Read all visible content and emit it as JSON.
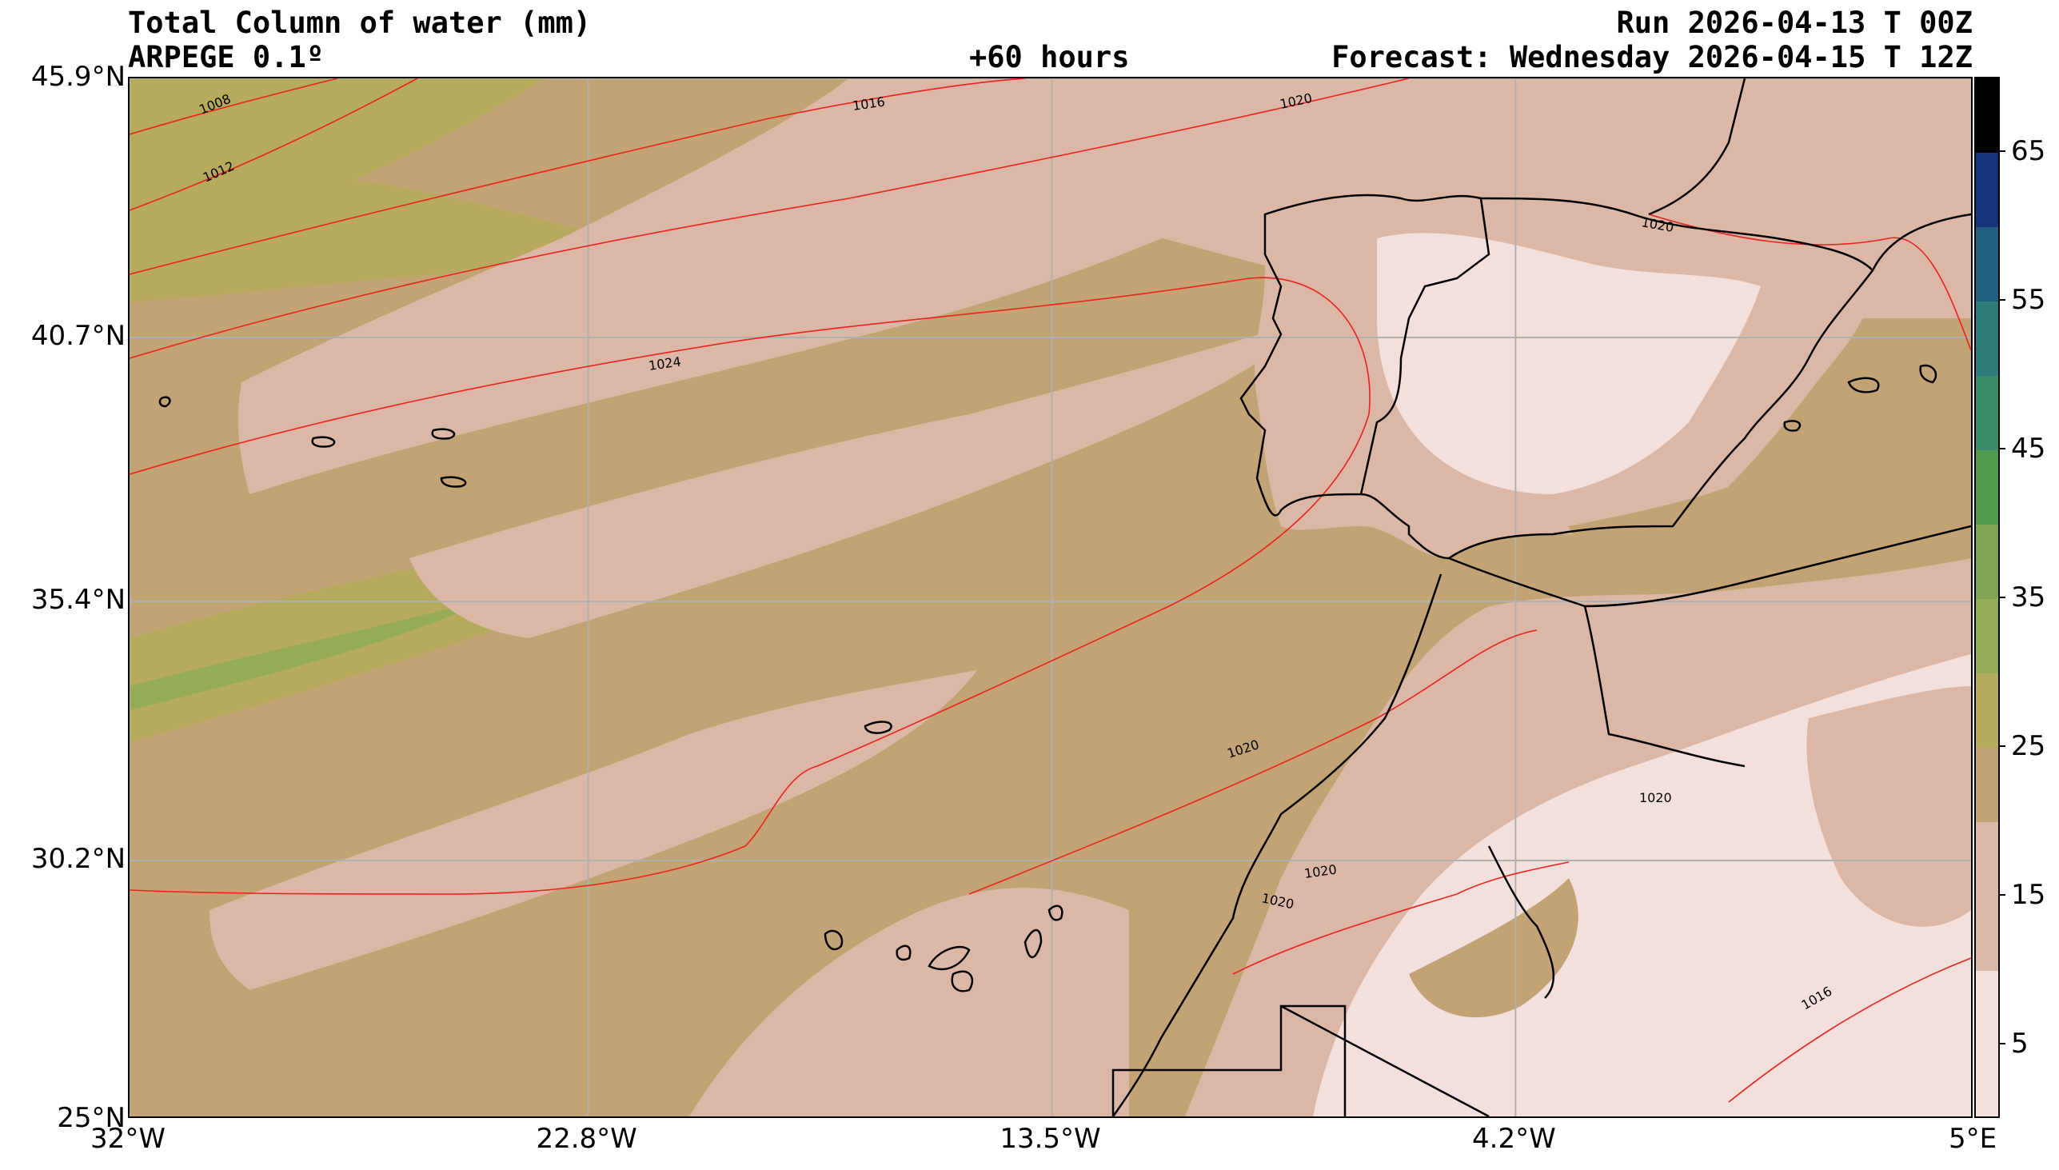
{
  "header": {
    "title": "Total Column of water (mm)",
    "model": "ARPEGE 0.1º",
    "lead": "+60 hours",
    "run": "Run 2026-04-13 T 00Z",
    "forecast": "Forecast: Wednesday 2026-04-15 T 12Z"
  },
  "axes": {
    "lat_ticks": [
      "45.9°N",
      "40.7°N",
      "35.4°N",
      "30.2°N",
      "25°N"
    ],
    "lon_ticks": [
      "32°W",
      "22.8°W",
      "13.5°W",
      "4.2°W",
      "5°E"
    ],
    "lat_values": [
      45.9,
      40.7,
      35.4,
      30.2,
      25.0
    ],
    "lon_values": [
      -32,
      -22.8,
      -13.5,
      -4.2,
      5
    ],
    "lat_range": [
      25.0,
      45.9
    ],
    "lon_range": [
      -32,
      5
    ],
    "grid": true
  },
  "colorbar": {
    "ticks": [
      "5",
      "15",
      "25",
      "35",
      "45",
      "55",
      "65"
    ],
    "tick_values": [
      5,
      15,
      25,
      35,
      45,
      55,
      65
    ],
    "range": [
      0,
      70
    ],
    "bands": [
      {
        "from": 0,
        "to": 10,
        "color": "#f3dfdb"
      },
      {
        "from": 10,
        "to": 20,
        "color": "#dcb7a6"
      },
      {
        "from": 20,
        "to": 25,
        "color": "#c3a373"
      },
      {
        "from": 25,
        "to": 30,
        "color": "#b6ab5c"
      },
      {
        "from": 30,
        "to": 35,
        "color": "#96ab55"
      },
      {
        "from": 35,
        "to": 40,
        "color": "#7ea453"
      },
      {
        "from": 40,
        "to": 45,
        "color": "#4f9a4e"
      },
      {
        "from": 45,
        "to": 50,
        "color": "#3c8c6a"
      },
      {
        "from": 50,
        "to": 55,
        "color": "#2f7c7d"
      },
      {
        "from": 55,
        "to": 60,
        "color": "#235e80"
      },
      {
        "from": 60,
        "to": 65,
        "color": "#16347a"
      },
      {
        "from": 65,
        "to": 70,
        "color": "#000000"
      }
    ]
  },
  "isobar_labels": [
    "1008",
    "1012",
    "1016",
    "1020",
    "1024",
    "1020",
    "1020",
    "1020",
    "1020",
    "1020",
    "1016"
  ],
  "colors": {
    "ocean_moist": "#c3a373",
    "dry": "#dcb7a6",
    "very_dry": "#f3dfdb",
    "green": "#b6ab5c",
    "isobar": "#e8231e",
    "coast": "#000000",
    "grid": "#b0b0b0"
  }
}
